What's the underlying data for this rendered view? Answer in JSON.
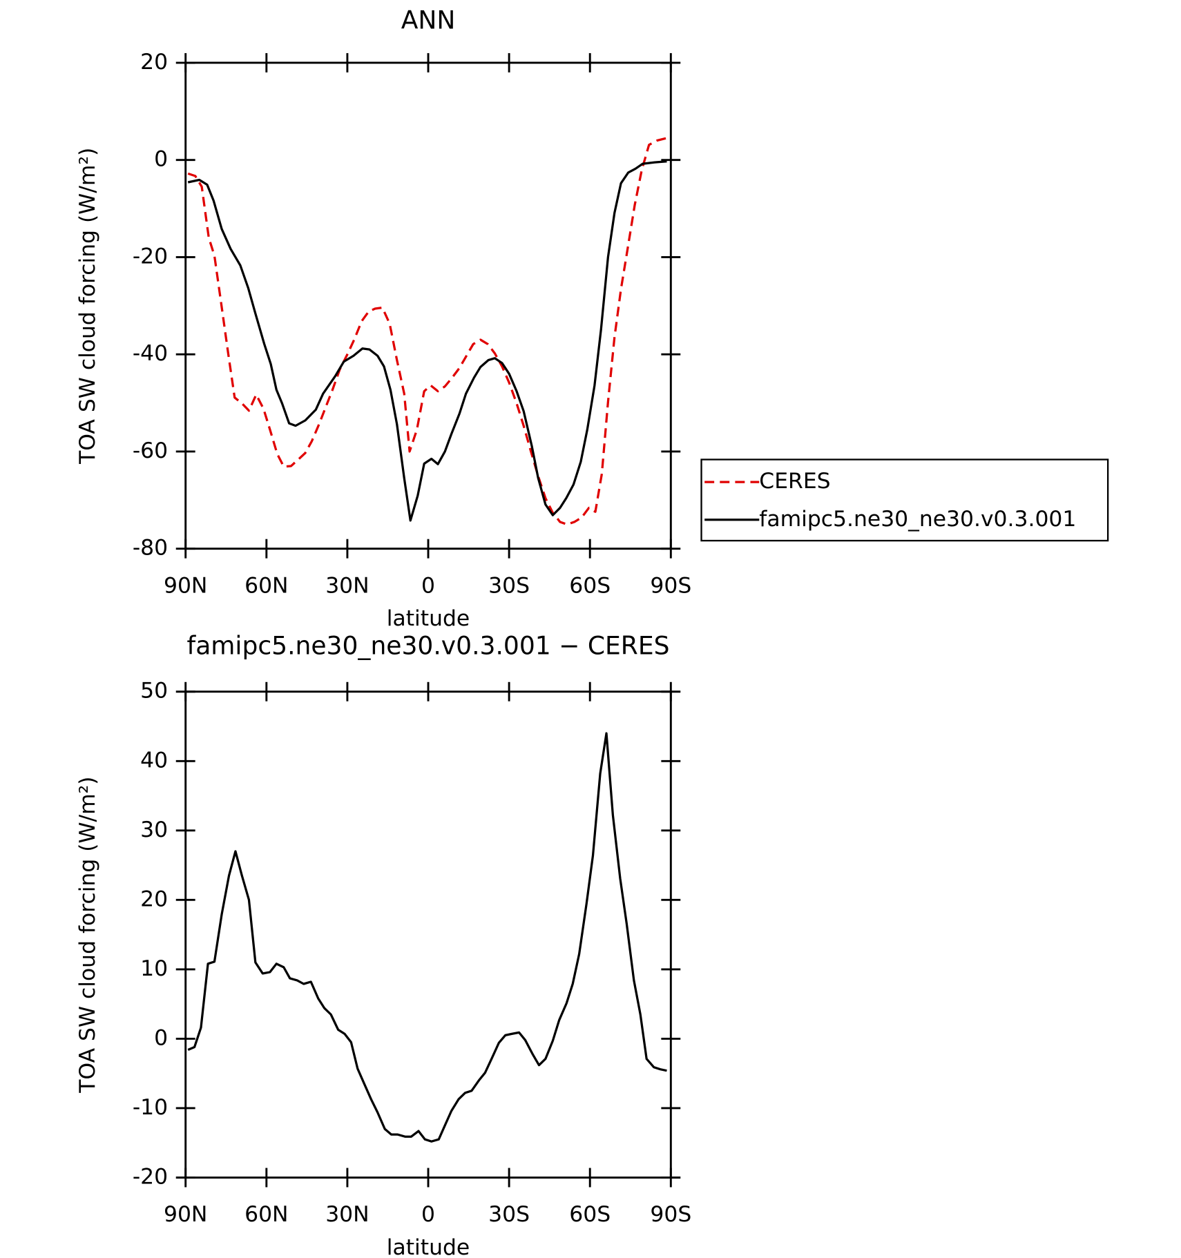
{
  "chart_data": [
    {
      "type": "line",
      "title": "ANN",
      "x_label": "latitude",
      "y_label": "TOA SW cloud forcing (W/m²)",
      "xlim": [
        90,
        -90
      ],
      "xticks": [
        {
          "value": 90,
          "label": "90N"
        },
        {
          "value": 60,
          "label": "60N"
        },
        {
          "value": 30,
          "label": "30N"
        },
        0,
        {
          "value": -30,
          "label": "30S"
        },
        {
          "value": -60,
          "label": "60S"
        },
        {
          "value": -90,
          "label": "90S"
        }
      ],
      "ylim": [
        -80,
        20
      ],
      "yticks": [
        20,
        0,
        -20,
        -40,
        -60,
        -80
      ],
      "legend": "outside-right",
      "series": [
        {
          "name": "CERES",
          "color": "#e00000",
          "dash": true,
          "x": [
            89.1,
            86.4,
            84,
            81.4,
            79.3,
            76.9,
            74.2,
            71.8,
            69.1,
            66.5,
            63.8,
            61.1,
            58.7,
            56,
            53.6,
            50.9,
            48.3,
            45.6,
            43.2,
            40.5,
            37.9,
            35.5,
            32.8,
            29.8,
            27.4,
            24.7,
            22.1,
            19.7,
            17,
            14.3,
            11.6,
            8.9,
            6.9,
            4.2,
            1.5,
            -0.9,
            -3.6,
            -6.2,
            -8.9,
            -11.6,
            -14.3,
            -16.7,
            -19.4,
            -22.1,
            -24.7,
            -27.4,
            -30,
            -32.8,
            -35.4,
            -38.1,
            -40.8,
            -43.5,
            -46.2,
            -48.9,
            -51.5,
            -54.2,
            -56.9,
            -59.6,
            -62,
            -64.4,
            -66.7,
            -69.1,
            -71.5,
            -74.2,
            -76.6,
            -79.2,
            -81.9,
            -84.9,
            -88.5
          ],
          "values": [
            -2.8,
            -3.3,
            -5.5,
            -16,
            -19.7,
            -29.1,
            -39.8,
            -48.9,
            -50.1,
            -51.6,
            -48.3,
            -51.2,
            -55.5,
            -60.5,
            -63.1,
            -63,
            -61.7,
            -60.3,
            -57.9,
            -54.4,
            -50.7,
            -47.3,
            -43.1,
            -39.8,
            -36.9,
            -33.2,
            -31.2,
            -30.6,
            -30.4,
            -33.7,
            -41.2,
            -48.1,
            -60,
            -55.5,
            -47.6,
            -46.4,
            -47.6,
            -46.6,
            -44.8,
            -42.8,
            -40.2,
            -37.9,
            -37,
            -37.9,
            -39.8,
            -42.5,
            -45.8,
            -50.1,
            -54.7,
            -60,
            -65.1,
            -69.6,
            -72.6,
            -74.5,
            -75,
            -74.5,
            -73.6,
            -71.6,
            -72.4,
            -64.6,
            -49.8,
            -36.5,
            -26.6,
            -17.5,
            -9.3,
            -2.1,
            3.1,
            4,
            4.5
          ]
        },
        {
          "name": "famipc5.ne30_ne30.v0.3.001",
          "color": "#000000",
          "dash": false,
          "x": [
            89.1,
            84.9,
            82,
            79.6,
            76.6,
            73.3,
            69.7,
            66.8,
            64.1,
            60.8,
            58.4,
            56.3,
            54.2,
            51.6,
            49.2,
            45.6,
            41.7,
            39,
            34.5,
            31.3,
            27.7,
            24.4,
            21.8,
            18.8,
            16.4,
            14,
            11.6,
            8.9,
            6.6,
            3.9,
            1.5,
            -1.2,
            -3.6,
            -6.2,
            -8.6,
            -11.6,
            -14,
            -17,
            -19.4,
            -22.3,
            -24.7,
            -27.4,
            -30,
            -32.8,
            -35.4,
            -38.4,
            -40.8,
            -43.5,
            -46.2,
            -48.9,
            -51.2,
            -53.9,
            -56.6,
            -59,
            -61.7,
            -64.1,
            -66.7,
            -69.1,
            -71.5,
            -74.2,
            -76.9,
            -79.5,
            -84,
            -88.5
          ],
          "values": [
            -4.6,
            -4.1,
            -5.1,
            -8.4,
            -14.2,
            -18.3,
            -21.7,
            -26.3,
            -31.6,
            -37.9,
            -42,
            -47.3,
            -50.1,
            -54.2,
            -54.7,
            -53.6,
            -51.4,
            -48.1,
            -44.5,
            -41.5,
            -40.3,
            -38.8,
            -39,
            -40.3,
            -42.5,
            -47.3,
            -54.4,
            -65.5,
            -74.2,
            -69.1,
            -62.5,
            -61.5,
            -62.6,
            -60,
            -56.4,
            -52.2,
            -48.1,
            -44.8,
            -42.6,
            -41.2,
            -40.8,
            -41.8,
            -44,
            -47.6,
            -51.7,
            -58.8,
            -65.5,
            -70.9,
            -73.1,
            -71.6,
            -69.6,
            -66.8,
            -62.1,
            -55.5,
            -46.4,
            -34.9,
            -20,
            -10.9,
            -4.8,
            -2.6,
            -1.8,
            -0.8,
            -0.5,
            -0.3
          ]
        }
      ]
    },
    {
      "type": "line",
      "title": "famipc5.ne30_ne30.v0.3.001 − CERES",
      "x_label": "latitude",
      "y_label": "TOA SW cloud forcing (W/m²)",
      "xlim": [
        90,
        -90
      ],
      "xticks": [
        {
          "value": 90,
          "label": "90N"
        },
        {
          "value": 60,
          "label": "60N"
        },
        {
          "value": 30,
          "label": "30N"
        },
        0,
        {
          "value": -30,
          "label": "30S"
        },
        {
          "value": -60,
          "label": "60S"
        },
        {
          "value": -90,
          "label": "90S"
        }
      ],
      "ylim": [
        -20,
        50
      ],
      "yticks": [
        50,
        40,
        30,
        20,
        10,
        0,
        -10,
        -20
      ],
      "color": "#000000",
      "x": [
        89.1,
        86.7,
        84.3,
        81.7,
        79.3,
        76.6,
        73.9,
        71.5,
        69.1,
        66.5,
        64.1,
        61.4,
        58.7,
        56.3,
        53.6,
        51.3,
        48.6,
        46.2,
        43.5,
        40.8,
        38.5,
        36.1,
        33.4,
        31,
        28.6,
        26.2,
        23.6,
        21.2,
        18.8,
        16.1,
        13.7,
        11.3,
        8.6,
        6.3,
        3.6,
        1.2,
        -1.2,
        -3.9,
        -6.3,
        -8.6,
        -11.3,
        -13.7,
        -16.1,
        -18.8,
        -21.1,
        -23.5,
        -26.2,
        -28.6,
        -31,
        -33.7,
        -36,
        -38.7,
        -41.1,
        -43.5,
        -46.2,
        -48.6,
        -51.3,
        -53.6,
        -56,
        -58.7,
        -61.1,
        -63.8,
        -66.1,
        -68.5,
        -71.2,
        -73.6,
        -76.3,
        -78.7,
        -81,
        -83.7,
        -86.1,
        -88.5
      ],
      "values": [
        -1.6,
        -1.2,
        1.6,
        10.8,
        11.1,
        17.9,
        23.5,
        27,
        23.5,
        20,
        11,
        9.4,
        9.6,
        10.8,
        10.3,
        8.7,
        8.4,
        7.9,
        8.2,
        5.8,
        4.4,
        3.5,
        1.3,
        0.7,
        -0.5,
        -4.3,
        -6.6,
        -8.7,
        -10.6,
        -13,
        -13.8,
        -13.8,
        -14.1,
        -14.1,
        -13.3,
        -14.5,
        -14.8,
        -14.5,
        -12.4,
        -10.4,
        -8.7,
        -7.8,
        -7.5,
        -6,
        -4.9,
        -2.9,
        -0.6,
        0.5,
        0.7,
        0.9,
        -0.2,
        -2.2,
        -3.8,
        -2.9,
        -0.3,
        2.7,
        5.1,
        7.9,
        12.2,
        19.4,
        26.4,
        38.2,
        44,
        32.2,
        23.1,
        16.6,
        8.4,
        3.5,
        -2.9,
        -4.1,
        -4.4,
        -4.6
      ]
    }
  ]
}
